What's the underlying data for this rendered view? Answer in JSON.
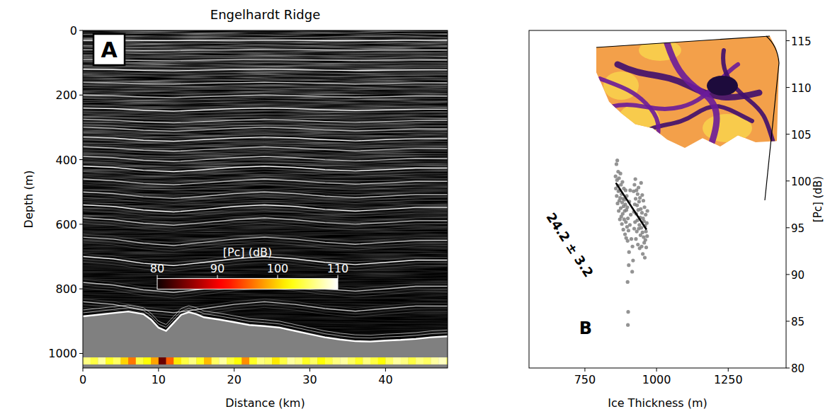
{
  "chart_data": [
    {
      "type": "radargram",
      "panel": "A",
      "title": "Engelhardt Ridge",
      "x_label": "Distance (km)",
      "y_label": "Depth (m)",
      "xlim": [
        0,
        48.2
      ],
      "ylim": [
        0,
        1045
      ],
      "xticks": [
        0,
        10,
        20,
        30,
        40
      ],
      "yticks": [
        0,
        200,
        400,
        600,
        800,
        1000
      ],
      "layer_x": [
        0,
        4,
        8,
        12,
        16,
        20,
        24,
        28,
        32,
        36,
        40,
        44,
        48.2
      ],
      "layers": [
        [
          30,
          30,
          31,
          31,
          31,
          30,
          30,
          30,
          31,
          31,
          31,
          30,
          30
        ],
        [
          60,
          60,
          62,
          62,
          61,
          60,
          60,
          60,
          61,
          62,
          61,
          61,
          61
        ],
        [
          90,
          91,
          93,
          94,
          92,
          91,
          90,
          91,
          92,
          93,
          92,
          91,
          91
        ],
        [
          120,
          121,
          124,
          125,
          123,
          121,
          120,
          121,
          123,
          124,
          123,
          122,
          122
        ],
        [
          160,
          162,
          165,
          166,
          164,
          162,
          160,
          162,
          164,
          166,
          164,
          162,
          162
        ],
        [
          200,
          202,
          206,
          208,
          205,
          202,
          200,
          202,
          205,
          207,
          205,
          203,
          203
        ],
        [
          240,
          242,
          247,
          250,
          246,
          242,
          240,
          242,
          246,
          248,
          246,
          244,
          244
        ],
        [
          275,
          278,
          283,
          286,
          282,
          278,
          275,
          278,
          282,
          285,
          282,
          279,
          279
        ],
        [
          300,
          303,
          309,
          312,
          308,
          303,
          300,
          303,
          308,
          311,
          308,
          305,
          305
        ],
        [
          330,
          333,
          340,
          343,
          338,
          333,
          330,
          333,
          338,
          342,
          338,
          335,
          335
        ],
        [
          360,
          364,
          371,
          374,
          369,
          364,
          360,
          364,
          369,
          373,
          369,
          365,
          365
        ],
        [
          390,
          394,
          402,
          406,
          400,
          394,
          390,
          394,
          400,
          404,
          400,
          396,
          396
        ],
        [
          420,
          424,
          433,
          437,
          431,
          424,
          420,
          424,
          431,
          435,
          431,
          426,
          426
        ],
        [
          460,
          465,
          474,
          478,
          472,
          465,
          460,
          465,
          472,
          476,
          472,
          467,
          467
        ],
        [
          500,
          505,
          515,
          520,
          513,
          505,
          500,
          505,
          513,
          518,
          513,
          508,
          508
        ],
        [
          540,
          545,
          556,
          562,
          554,
          545,
          540,
          545,
          554,
          559,
          554,
          548,
          548
        ],
        [
          580,
          586,
          597,
          603,
          595,
          586,
          580,
          586,
          595,
          600,
          595,
          589,
          589
        ],
        [
          640,
          646,
          659,
          666,
          656,
          646,
          640,
          646,
          656,
          662,
          656,
          650,
          650
        ],
        [
          700,
          707,
          721,
          728,
          718,
          707,
          700,
          707,
          718,
          725,
          718,
          711,
          711
        ],
        [
          780,
          788,
          803,
          811,
          800,
          788,
          780,
          788,
          800,
          807,
          800,
          792,
          792
        ],
        [
          840,
          848,
          865,
          874,
          861,
          848,
          840,
          848,
          861,
          869,
          861,
          853,
          853
        ]
      ],
      "bed": {
        "color": "#808080",
        "x": [
          0,
          2,
          4,
          6,
          8,
          9,
          10,
          11,
          12,
          13,
          14,
          15,
          16,
          18,
          20,
          22,
          24,
          26,
          28,
          30,
          32,
          34,
          36,
          38,
          40,
          42,
          44,
          46,
          48.2
        ],
        "values": [
          885,
          880,
          875,
          870,
          878,
          895,
          920,
          930,
          905,
          880,
          872,
          878,
          888,
          895,
          903,
          912,
          915,
          920,
          930,
          940,
          950,
          957,
          962,
          963,
          960,
          958,
          955,
          950,
          947
        ]
      },
      "pc": {
        "x": [
          0,
          1,
          2,
          3,
          4,
          5,
          6,
          7,
          8,
          9,
          10,
          11,
          12,
          13,
          14,
          15,
          16,
          17,
          18,
          19,
          20,
          21,
          22,
          23,
          24,
          25,
          26,
          27,
          28,
          29,
          30,
          31,
          32,
          33,
          34,
          35,
          36,
          37,
          38,
          39,
          40,
          41,
          42,
          43,
          44,
          45,
          46,
          47,
          48
        ],
        "values": [
          106,
          104,
          107,
          103,
          105,
          100,
          96,
          104,
          102,
          98,
          84,
          95,
          101,
          104,
          106,
          103,
          99,
          105,
          107,
          104,
          102,
          97,
          103,
          106,
          105,
          101,
          104,
          107,
          106,
          103,
          105,
          102,
          104,
          106,
          107,
          105,
          103,
          106,
          104,
          102,
          105,
          107,
          106,
          104,
          106,
          105,
          107,
          108,
          106
        ]
      },
      "colorbar": {
        "label": "[Pc] (dB)",
        "range": [
          80,
          110
        ],
        "ticks": [
          80,
          90,
          100,
          110
        ]
      }
    },
    {
      "type": "scatter",
      "panel": "B",
      "x_label": "Ice Thickness (m)",
      "y_label": "[Pc] (dB)",
      "xlim": [
        555,
        1452
      ],
      "ylim": [
        80,
        116.1
      ],
      "xticks": [
        750,
        1000,
        1250
      ],
      "yticks": [
        80,
        85,
        90,
        95,
        100,
        105,
        110,
        115
      ],
      "series": [
        {
          "type": "scatter",
          "color": "#808080",
          "x": [
            857,
            858,
            860,
            861,
            862,
            863,
            864,
            865,
            866,
            867,
            868,
            869,
            870,
            871,
            872,
            873,
            874,
            875,
            876,
            877,
            878,
            879,
            880,
            881,
            882,
            883,
            884,
            885,
            886,
            887,
            888,
            889,
            890,
            891,
            892,
            893,
            894,
            895,
            896,
            897,
            898,
            899,
            900,
            902,
            904,
            905,
            907,
            899,
            901,
            900,
            903,
            910,
            912,
            915,
            908,
            916,
            918,
            920,
            921,
            922,
            923,
            924,
            925,
            926,
            927,
            928,
            929,
            930,
            931,
            932,
            933,
            934,
            935,
            936,
            937,
            938,
            939,
            940,
            941,
            942,
            943,
            944,
            945,
            946,
            947,
            948,
            949,
            950,
            951,
            952,
            953,
            954,
            955,
            956,
            957,
            958,
            959,
            960,
            961,
            962,
            963,
            964,
            966,
            967,
            968
          ],
          "values": [
            100.5,
            99.2,
            101.8,
            98.4,
            100.1,
            102.2,
            97.6,
            99.5,
            101.0,
            98.9,
            96.8,
            100.3,
            97.9,
            99.0,
            95.9,
            98.2,
            100.8,
            97.1,
            99.6,
            96.2,
            98.6,
            95.4,
            97.7,
            99.9,
            96.5,
            98.1,
            94.8,
            97.3,
            99.2,
            95.9,
            98.0,
            96.8,
            94.3,
            97.5,
            99.0,
            95.6,
            93.9,
            96.9,
            98.4,
            95.1,
            97.2,
            93.6,
            96.0,
            94.7,
            92.4,
            97.8,
            95.3,
            89.2,
            86.0,
            84.6,
            91.0,
            96.4,
            93.8,
            90.3,
            99.0,
            93.0,
            91.5,
            98.9,
            96.7,
            94.9,
            99.6,
            97.5,
            95.6,
            100.2,
            98.1,
            93.8,
            96.5,
            99.0,
            94.6,
            97.4,
            95.8,
            98.6,
            93.2,
            96.9,
            99.3,
            94.9,
            97.8,
            95.3,
            92.8,
            98.2,
            96.1,
            94.2,
            97.0,
            99.8,
            95.0,
            93.0,
            96.6,
            98.5,
            94.5,
            92.2,
            96.0,
            97.9,
            94.0,
            95.7,
            93.4,
            97.2,
            91.8,
            95.2,
            93.7,
            96.4,
            94.6,
            92.9,
            95.5,
            94.1,
            96.8
          ]
        },
        {
          "type": "line",
          "color": "#000000",
          "x": [
            858,
            965
          ],
          "values": [
            99.8,
            94.8
          ]
        }
      ],
      "annotation": "24.2 ± 3.2"
    }
  ]
}
